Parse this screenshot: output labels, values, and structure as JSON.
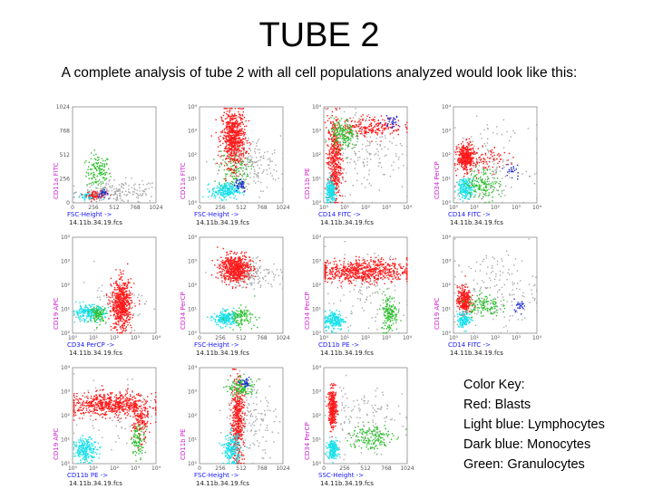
{
  "title": "TUBE 2",
  "subtitle": "A complete analysis of tube 2 with all cell populations analyzed would look like this:",
  "color_key": {
    "heading": "Color Key:",
    "items": [
      {
        "label": "Red: Blasts",
        "color": "#ff0000"
      },
      {
        "label": "Light blue: Lymphocytes",
        "color": "#00e5ee"
      },
      {
        "label": "Dark blue: Monocytes",
        "color": "#1e2bd6"
      },
      {
        "label": "Green: Granulocytes",
        "color": "#22bb22"
      }
    ]
  },
  "chart_data": [
    {
      "type": "scatter",
      "xlabel": "FSC-Height ->",
      "ylabel": "CD11a FITC",
      "file": "14.11b.34.19.fcs",
      "xticks": [
        "0",
        "256",
        "512",
        "768",
        "1024"
      ],
      "yticks": [
        "0",
        "256",
        "512",
        "768",
        "1024"
      ],
      "populations": [
        {
          "name": "Green",
          "cx": 0.3,
          "cy": 0.33,
          "sx": 0.07,
          "sy": 0.09,
          "n": 130
        },
        {
          "name": "Light blue",
          "cx": 0.2,
          "cy": 0.08,
          "sx": 0.06,
          "sy": 0.02,
          "n": 80
        },
        {
          "name": "Red",
          "cx": 0.28,
          "cy": 0.09,
          "sx": 0.06,
          "sy": 0.02,
          "n": 90
        },
        {
          "name": "Dark blue",
          "cx": 0.36,
          "cy": 0.1,
          "sx": 0.03,
          "sy": 0.02,
          "n": 40
        },
        {
          "name": "Gray",
          "cx": 0.55,
          "cy": 0.12,
          "sx": 0.25,
          "sy": 0.06,
          "n": 180
        }
      ]
    },
    {
      "type": "scatter",
      "xlabel": "FSC-Height ->",
      "ylabel": "CD11a FITC",
      "file": "14.11b.34.19.fcs",
      "xticks": [
        "0",
        "256",
        "512",
        "768",
        "1024"
      ],
      "yticks": [
        "10⁰",
        "10¹",
        "10²",
        "10³",
        "10⁴"
      ],
      "populations": [
        {
          "name": "Gray",
          "cx": 0.6,
          "cy": 0.4,
          "sx": 0.18,
          "sy": 0.15,
          "n": 180
        },
        {
          "name": "Green",
          "cx": 0.4,
          "cy": 0.35,
          "sx": 0.09,
          "sy": 0.1,
          "n": 120
        },
        {
          "name": "Red",
          "cx": 0.4,
          "cy": 0.68,
          "sx": 0.07,
          "sy": 0.15,
          "n": 650
        },
        {
          "name": "Light blue",
          "cx": 0.3,
          "cy": 0.13,
          "sx": 0.08,
          "sy": 0.04,
          "n": 220
        },
        {
          "name": "Dark blue",
          "cx": 0.48,
          "cy": 0.2,
          "sx": 0.04,
          "sy": 0.04,
          "n": 40
        }
      ]
    },
    {
      "type": "scatter",
      "xlabel": "CD14 FITC ->",
      "ylabel": "CD11b PE",
      "file": "14.11b.34.19.fcs",
      "xticks": [
        "10⁰",
        "10¹",
        "10²",
        "10³",
        "10⁴"
      ],
      "yticks": [
        "10⁰",
        "10¹",
        "10²",
        "10³",
        "10⁴"
      ],
      "populations": [
        {
          "name": "Gray",
          "cx": 0.5,
          "cy": 0.55,
          "sx": 0.25,
          "sy": 0.22,
          "n": 180
        },
        {
          "name": "Red",
          "cx": 0.12,
          "cy": 0.45,
          "sx": 0.04,
          "sy": 0.22,
          "n": 450
        },
        {
          "name": "Red",
          "cx": 0.55,
          "cy": 0.8,
          "sx": 0.2,
          "sy": 0.05,
          "n": 220
        },
        {
          "name": "Green",
          "cx": 0.22,
          "cy": 0.72,
          "sx": 0.07,
          "sy": 0.08,
          "n": 170
        },
        {
          "name": "Light blue",
          "cx": 0.08,
          "cy": 0.12,
          "sx": 0.03,
          "sy": 0.06,
          "n": 200
        },
        {
          "name": "Dark blue",
          "cx": 0.8,
          "cy": 0.85,
          "sx": 0.05,
          "sy": 0.03,
          "n": 30
        }
      ]
    },
    {
      "type": "scatter",
      "xlabel": "CD14 FITC ->",
      "ylabel": "CD34 PerCP",
      "file": "14.11b.34.19.fcs",
      "xticks": [
        "10⁰",
        "10¹",
        "10²",
        "10³",
        "10⁴"
      ],
      "yticks": [
        "10⁰",
        "10¹",
        "10²",
        "10³",
        "10⁴"
      ],
      "populations": [
        {
          "name": "Gray",
          "cx": 0.4,
          "cy": 0.4,
          "sx": 0.25,
          "sy": 0.2,
          "n": 160
        },
        {
          "name": "Red",
          "cx": 0.14,
          "cy": 0.48,
          "sx": 0.05,
          "sy": 0.07,
          "n": 380
        },
        {
          "name": "Red",
          "cx": 0.4,
          "cy": 0.45,
          "sx": 0.12,
          "sy": 0.06,
          "n": 80
        },
        {
          "name": "Light blue",
          "cx": 0.14,
          "cy": 0.16,
          "sx": 0.05,
          "sy": 0.05,
          "n": 180
        },
        {
          "name": "Green",
          "cx": 0.35,
          "cy": 0.2,
          "sx": 0.1,
          "sy": 0.08,
          "n": 140
        },
        {
          "name": "Dark blue",
          "cx": 0.7,
          "cy": 0.35,
          "sx": 0.05,
          "sy": 0.05,
          "n": 20
        }
      ]
    },
    {
      "type": "scatter",
      "xlabel": "CD34 PerCP ->",
      "ylabel": "CD19 APC",
      "file": "14.11b.34.19.fcs",
      "xticks": [
        "10⁰",
        "10¹",
        "10²",
        "10³",
        "10⁴"
      ],
      "yticks": [
        "10⁰",
        "10¹",
        "10²",
        "10³",
        "10⁴"
      ],
      "populations": [
        {
          "name": "Gray",
          "cx": 0.5,
          "cy": 0.3,
          "sx": 0.2,
          "sy": 0.15,
          "n": 80
        },
        {
          "name": "Light blue",
          "cx": 0.18,
          "cy": 0.22,
          "sx": 0.1,
          "sy": 0.04,
          "n": 220
        },
        {
          "name": "Green",
          "cx": 0.3,
          "cy": 0.2,
          "sx": 0.05,
          "sy": 0.04,
          "n": 90
        },
        {
          "name": "Red",
          "cx": 0.58,
          "cy": 0.3,
          "sx": 0.06,
          "sy": 0.13,
          "n": 600
        }
      ]
    },
    {
      "type": "scatter",
      "xlabel": "FSC-Height ->",
      "ylabel": "CD34 PerCP",
      "file": "14.11b.34.19.fcs",
      "xticks": [
        "0",
        "256",
        "512",
        "768",
        "1024"
      ],
      "yticks": [
        "10⁰",
        "10¹",
        "10²",
        "10³",
        "10⁴"
      ],
      "populations": [
        {
          "name": "Gray",
          "cx": 0.62,
          "cy": 0.62,
          "sx": 0.18,
          "sy": 0.07,
          "n": 170
        },
        {
          "name": "Red",
          "cx": 0.42,
          "cy": 0.68,
          "sx": 0.09,
          "sy": 0.07,
          "n": 600
        },
        {
          "name": "Light blue",
          "cx": 0.3,
          "cy": 0.16,
          "sx": 0.07,
          "sy": 0.04,
          "n": 200
        },
        {
          "name": "Green",
          "cx": 0.5,
          "cy": 0.18,
          "sx": 0.08,
          "sy": 0.05,
          "n": 110
        }
      ]
    },
    {
      "type": "scatter",
      "xlabel": "CD11b PE ->",
      "ylabel": "CD34 PerCP",
      "file": "14.11b.34.19.fcs",
      "xticks": [
        "10⁰",
        "10¹",
        "10²",
        "10³",
        "10⁴"
      ],
      "yticks": [
        "10⁰",
        "10¹",
        "10²",
        "10³",
        "10⁴"
      ],
      "populations": [
        {
          "name": "Gray",
          "cx": 0.5,
          "cy": 0.45,
          "sx": 0.25,
          "sy": 0.2,
          "n": 120
        },
        {
          "name": "Red",
          "cx": 0.45,
          "cy": 0.65,
          "sx": 0.28,
          "sy": 0.06,
          "n": 700
        },
        {
          "name": "Light blue",
          "cx": 0.12,
          "cy": 0.14,
          "sx": 0.06,
          "sy": 0.05,
          "n": 200
        },
        {
          "name": "Green",
          "cx": 0.78,
          "cy": 0.22,
          "sx": 0.05,
          "sy": 0.1,
          "n": 150
        }
      ]
    },
    {
      "type": "scatter",
      "xlabel": "CD14 FITC ->",
      "ylabel": "CD19 APC",
      "file": "14.11b.34.19.fcs",
      "xticks": [
        "10⁰",
        "10¹",
        "10²",
        "10³",
        "10⁴"
      ],
      "yticks": [
        "10⁰",
        "10¹",
        "10²",
        "10³",
        "10⁴"
      ],
      "populations": [
        {
          "name": "Gray",
          "cx": 0.5,
          "cy": 0.45,
          "sx": 0.25,
          "sy": 0.2,
          "n": 170
        },
        {
          "name": "Red",
          "cx": 0.12,
          "cy": 0.35,
          "sx": 0.04,
          "sy": 0.07,
          "n": 300
        },
        {
          "name": "Light blue",
          "cx": 0.12,
          "cy": 0.15,
          "sx": 0.04,
          "sy": 0.04,
          "n": 130
        },
        {
          "name": "Green",
          "cx": 0.35,
          "cy": 0.3,
          "sx": 0.1,
          "sy": 0.06,
          "n": 120
        },
        {
          "name": "Dark blue",
          "cx": 0.78,
          "cy": 0.3,
          "sx": 0.04,
          "sy": 0.03,
          "n": 25
        }
      ]
    },
    {
      "type": "scatter",
      "xlabel": "CD11b PE ->",
      "ylabel": "CD19 APC",
      "file": "14.11b.34.19.fcs",
      "xticks": [
        "10⁰",
        "10¹",
        "10²",
        "10³",
        "10⁴"
      ],
      "yticks": [
        "10⁰",
        "10¹",
        "10²",
        "10³",
        "10⁴"
      ],
      "populations": [
        {
          "name": "Gray",
          "cx": 0.5,
          "cy": 0.5,
          "sx": 0.25,
          "sy": 0.2,
          "n": 80
        },
        {
          "name": "Red",
          "cx": 0.45,
          "cy": 0.62,
          "sx": 0.25,
          "sy": 0.06,
          "n": 600
        },
        {
          "name": "Red",
          "cx": 0.8,
          "cy": 0.45,
          "sx": 0.05,
          "sy": 0.1,
          "n": 150
        },
        {
          "name": "Light blue",
          "cx": 0.15,
          "cy": 0.15,
          "sx": 0.07,
          "sy": 0.06,
          "n": 220
        },
        {
          "name": "Green",
          "cx": 0.78,
          "cy": 0.25,
          "sx": 0.04,
          "sy": 0.08,
          "n": 90
        }
      ]
    },
    {
      "type": "scatter",
      "xlabel": "FSC-Height ->",
      "ylabel": "CD11b PE",
      "file": "14.11b.34.19.fcs",
      "xticks": [
        "0",
        "256",
        "512",
        "768",
        "1024"
      ],
      "yticks": [
        "10⁰",
        "10¹",
        "10²",
        "10³",
        "10⁴"
      ],
      "populations": [
        {
          "name": "Gray",
          "cx": 0.6,
          "cy": 0.5,
          "sx": 0.15,
          "sy": 0.2,
          "n": 160
        },
        {
          "name": "Red",
          "cx": 0.45,
          "cy": 0.45,
          "sx": 0.04,
          "sy": 0.22,
          "n": 450
        },
        {
          "name": "Green",
          "cx": 0.5,
          "cy": 0.8,
          "sx": 0.08,
          "sy": 0.05,
          "n": 130
        },
        {
          "name": "Light blue",
          "cx": 0.38,
          "cy": 0.15,
          "sx": 0.05,
          "sy": 0.08,
          "n": 220
        },
        {
          "name": "Dark blue",
          "cx": 0.55,
          "cy": 0.84,
          "sx": 0.03,
          "sy": 0.02,
          "n": 30
        }
      ]
    },
    {
      "type": "scatter",
      "xlabel": "SSC-Height ->",
      "ylabel": "CD34 PerCP",
      "file": "14.11b.34.19.fcs",
      "xticks": [
        "0",
        "256",
        "512",
        "768",
        "1024"
      ],
      "yticks": [
        "10⁰",
        "10¹",
        "10²",
        "10³",
        "10⁴"
      ],
      "populations": [
        {
          "name": "Gray",
          "cx": 0.45,
          "cy": 0.45,
          "sx": 0.25,
          "sy": 0.2,
          "n": 140
        },
        {
          "name": "Red",
          "cx": 0.1,
          "cy": 0.58,
          "sx": 0.025,
          "sy": 0.1,
          "n": 300
        },
        {
          "name": "Light blue",
          "cx": 0.1,
          "cy": 0.16,
          "sx": 0.03,
          "sy": 0.05,
          "n": 180
        },
        {
          "name": "Green",
          "cx": 0.55,
          "cy": 0.28,
          "sx": 0.13,
          "sy": 0.07,
          "n": 160
        }
      ]
    }
  ]
}
